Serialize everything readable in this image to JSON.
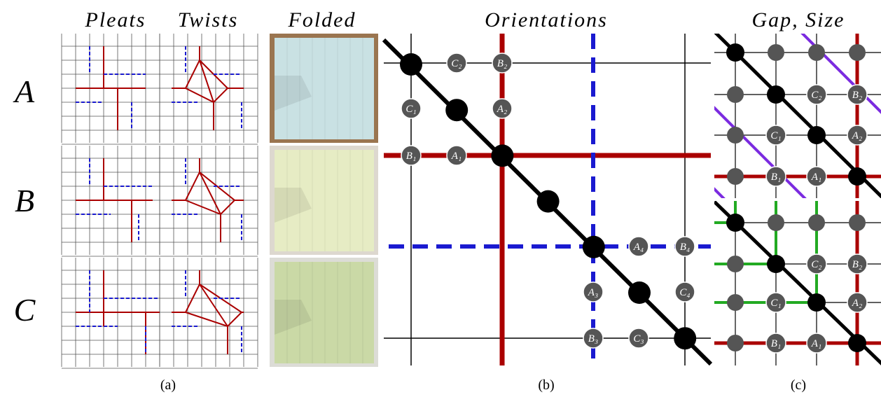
{
  "panel_a": {
    "columns": [
      "Pleats",
      "Twists",
      "Folded"
    ],
    "rows": [
      "A",
      "B",
      "C"
    ],
    "caption": "(a)"
  },
  "panel_b": {
    "title": "Orientations",
    "labels": [
      "C₂",
      "B₂",
      "C₁",
      "A₂",
      "B₁",
      "A₁",
      "A₄",
      "B₄",
      "A₃",
      "C₄",
      "B₃",
      "C₃"
    ],
    "caption": "(b)"
  },
  "panel_c": {
    "title": "Gap, Size",
    "top_labels": [
      "C₂",
      "B₂",
      "C₁",
      "A₂",
      "B₁",
      "A₁"
    ],
    "bottom_labels": [
      "C₂",
      "B₂",
      "C₁",
      "A₂",
      "B₁",
      "A₁"
    ],
    "caption": "(c)"
  }
}
